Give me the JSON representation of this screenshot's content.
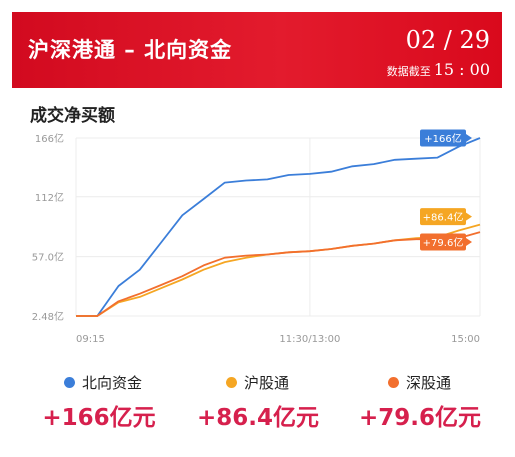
{
  "header": {
    "title": "沪深港通 – 北向资金",
    "date": "02 / 29",
    "time_label": "数据截至",
    "time_value": "15 : 00"
  },
  "section_title": "成交净买额",
  "legend": [
    {
      "name": "北向资金",
      "color": "#3b7ed9"
    },
    {
      "name": "沪股通",
      "color": "#f5a623"
    },
    {
      "name": "深股通",
      "color": "#f26f2e"
    }
  ],
  "totals": [
    "+166亿元",
    "+86.4亿元",
    "+79.6亿元"
  ],
  "chart_data": {
    "type": "line",
    "title": "成交净买额",
    "x_ticks": [
      "09:15",
      "11:30/13:00",
      "15:00"
    ],
    "y_ticks": [
      "2.48亿",
      "57.0亿",
      "112亿",
      "166亿"
    ],
    "ylim": [
      2.48,
      166
    ],
    "grid": true,
    "x": [
      "09:15",
      "09:25",
      "09:30",
      "09:35",
      "09:45",
      "10:00",
      "10:15",
      "10:30",
      "10:45",
      "11:00",
      "11:15",
      "11:30/13:00",
      "13:15",
      "13:30",
      "13:45",
      "14:00",
      "14:15",
      "14:30",
      "14:45",
      "15:00"
    ],
    "series": [
      {
        "name": "北向资金",
        "color": "#3b7ed9",
        "values": [
          2.5,
          2.5,
          30,
          45,
          70,
          95,
          110,
          125,
          127,
          128,
          132,
          133,
          135,
          140,
          142,
          146,
          147,
          148,
          158,
          166
        ],
        "end_label": "+166亿"
      },
      {
        "name": "沪股通",
        "color": "#f5a623",
        "values": [
          2.5,
          2.5,
          15,
          20,
          28,
          36,
          45,
          52,
          56,
          59,
          61,
          62,
          64,
          67,
          69,
          72,
          74,
          75,
          81,
          86.4
        ],
        "end_label": "+86.4亿"
      },
      {
        "name": "深股通",
        "color": "#f26f2e",
        "values": [
          2.5,
          2.5,
          16,
          23,
          31,
          39,
          49,
          56,
          58,
          59,
          61,
          62,
          64,
          67,
          69,
          72,
          73,
          73,
          74,
          79.6
        ],
        "end_label": "+79.6亿"
      }
    ]
  }
}
